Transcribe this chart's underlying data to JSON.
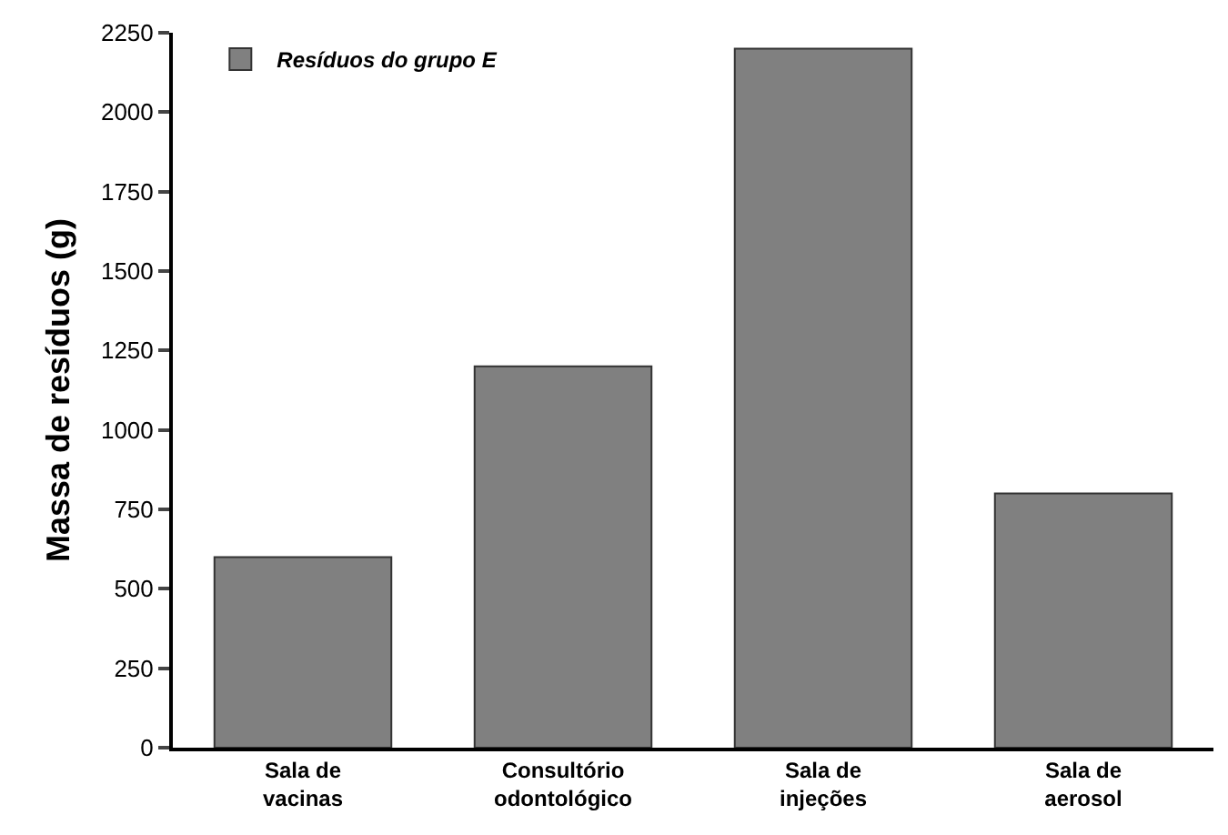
{
  "chart_data": {
    "type": "bar",
    "ylabel": "Massa de resíduos (g)",
    "categories": [
      "Sala de vacinas",
      "Consultório odontológico",
      "Sala de injeções",
      "Sala de aerosol"
    ],
    "series": [
      {
        "name": "Resíduos do grupo E",
        "color": "#808080",
        "values": [
          600,
          1200,
          2200,
          800
        ]
      }
    ],
    "ylim": [
      0,
      2250
    ],
    "yticks": [
      0,
      250,
      500,
      750,
      1000,
      1250,
      1500,
      1750,
      2000,
      2250
    ],
    "grid": false,
    "legend": "top left"
  }
}
